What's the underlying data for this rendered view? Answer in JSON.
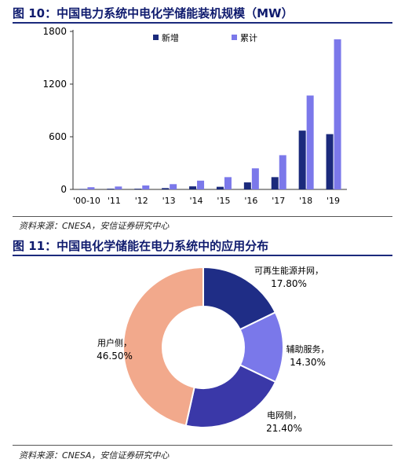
{
  "figure1": {
    "title": "图 10：中国电力系统中电化学储能装机规模（MW）",
    "source": "资料来源：CNESA，安信证券研究中心"
  },
  "figure2": {
    "title": "图 11：中国电化学储能在电力系统中的应用分布",
    "source": "资料来源：CNESA，安信证券研究中心"
  },
  "colors": {
    "new": "#1b2a7c",
    "cumulative": "#7b78ea",
    "donut_renewable": "#1f2d86",
    "donut_ancillary": "#7a78ea",
    "donut_grid": "#3a38a8",
    "donut_user": "#f2a98c"
  },
  "chart_data": [
    {
      "type": "bar",
      "title": "图 10：中国电力系统中电化学储能装机规模（MW）",
      "categories": [
        "'00-10",
        "'11",
        "'12",
        "'13",
        "'14",
        "'15",
        "'16",
        "'17",
        "'18",
        "'19"
      ],
      "series": [
        {
          "name": "新增",
          "values": [
            5,
            8,
            8,
            15,
            35,
            30,
            80,
            140,
            670,
            630
          ]
        },
        {
          "name": "累计",
          "values": [
            25,
            33,
            45,
            60,
            100,
            140,
            240,
            390,
            1070,
            1710
          ]
        }
      ],
      "yticks": [
        "0",
        "600",
        "1200",
        "1800"
      ],
      "ylim": [
        0,
        1800
      ],
      "legend_position": "top",
      "grid": false
    },
    {
      "type": "pie",
      "title": "图 11：中国电化学储能在电力系统中的应用分布",
      "donut": true,
      "slices": [
        {
          "label": "可再生能源并网，",
          "value": 17.8,
          "text": "17.80%"
        },
        {
          "label": "辅助服务，",
          "value": 14.3,
          "text": "14.30%"
        },
        {
          "label": "电网侧，",
          "value": 21.4,
          "text": "21.40%"
        },
        {
          "label": "用户侧，",
          "value": 46.5,
          "text": "46.50%"
        }
      ]
    }
  ]
}
